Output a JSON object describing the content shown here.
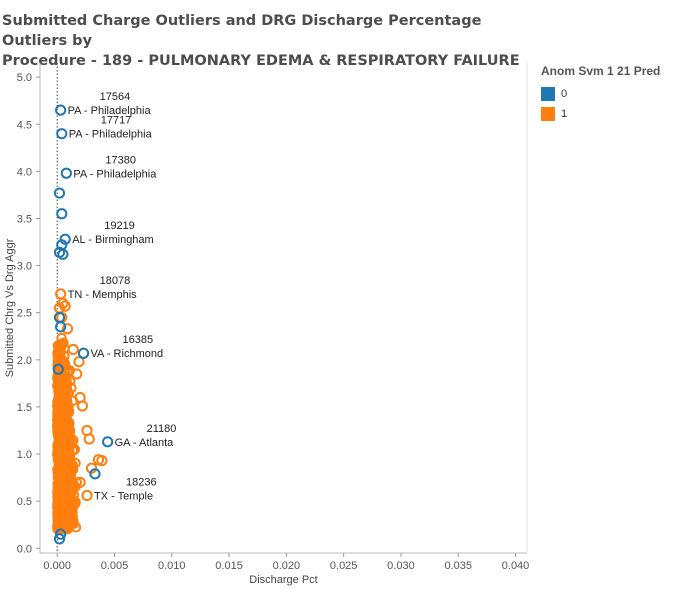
{
  "title_line1": "Submitted Charge Outliers and DRG Discharge Percentage Outliers by",
  "title_line2": "Procedure - 189 - PULMONARY EDEMA & RESPIRATORY FAILURE",
  "legend": {
    "title": "Anom Svm 1 21 Pred",
    "items": [
      {
        "label": "0",
        "color": "#1f77b4"
      },
      {
        "label": "1",
        "color": "#ff7f0e"
      }
    ]
  },
  "chart_data": {
    "type": "scatter",
    "title": "Submitted Charge Outliers and DRG Discharge Percentage Outliers by Procedure - 189 - PULMONARY EDEMA & RESPIRATORY FAILURE",
    "xlabel": "Discharge Pct",
    "ylabel": "Submitted Chrg Vs Drg Aggr",
    "xlim": [
      -0.0015,
      0.041
    ],
    "ylim": [
      -0.05,
      5.15
    ],
    "x_ticks": [
      "0.000",
      "0.005",
      "0.010",
      "0.015",
      "0.020",
      "0.025",
      "0.030",
      "0.035",
      "0.040"
    ],
    "x_tick_values": [
      0,
      0.005,
      0.01,
      0.015,
      0.02,
      0.025,
      0.03,
      0.035,
      0.04
    ],
    "y_ticks": [
      "0.0",
      "0.5",
      "1.0",
      "1.5",
      "2.0",
      "2.5",
      "3.0",
      "3.5",
      "4.0",
      "4.5",
      "5.0"
    ],
    "y_tick_values": [
      0,
      0.5,
      1,
      1.5,
      2,
      2.5,
      3,
      3.5,
      4,
      4.5,
      5
    ],
    "reference_line_x": 0,
    "grid": false,
    "legend_position": "right",
    "series": [
      {
        "name": "0",
        "color": "#1f77b4",
        "points": [
          {
            "x": 0.0003,
            "y": 4.65
          },
          {
            "x": 0.0004,
            "y": 4.4
          },
          {
            "x": 0.0008,
            "y": 3.98
          },
          {
            "x": 0.0002,
            "y": 3.77
          },
          {
            "x": 0.0004,
            "y": 3.55
          },
          {
            "x": 0.0007,
            "y": 3.28
          },
          {
            "x": 0.0004,
            "y": 3.22
          },
          {
            "x": 0.0002,
            "y": 3.14
          },
          {
            "x": 0.0005,
            "y": 3.12
          },
          {
            "x": 0.0002,
            "y": 2.45
          },
          {
            "x": 0.0003,
            "y": 2.35
          },
          {
            "x": 0.0023,
            "y": 2.07
          },
          {
            "x": 0.0001,
            "y": 1.9
          },
          {
            "x": 0.0044,
            "y": 1.13
          },
          {
            "x": 0.0033,
            "y": 0.79
          },
          {
            "x": 0.0003,
            "y": 0.15
          },
          {
            "x": 0.0002,
            "y": 0.1
          }
        ]
      },
      {
        "name": "1",
        "color": "#ff7f0e",
        "points": [
          {
            "x": 0.0003,
            "y": 2.7
          },
          {
            "x": 0.0005,
            "y": 2.6
          },
          {
            "x": 0.0002,
            "y": 2.55
          },
          {
            "x": 0.0007,
            "y": 2.57
          },
          {
            "x": 0.0004,
            "y": 2.45
          },
          {
            "x": 0.0009,
            "y": 2.33
          },
          {
            "x": 0.0014,
            "y": 2.11
          },
          {
            "x": 0.0019,
            "y": 1.98
          },
          {
            "x": 0.0017,
            "y": 1.85
          },
          {
            "x": 0.002,
            "y": 1.6
          },
          {
            "x": 0.0022,
            "y": 1.51
          },
          {
            "x": 0.0026,
            "y": 1.25
          },
          {
            "x": 0.0028,
            "y": 1.16
          },
          {
            "x": 0.0036,
            "y": 0.94
          },
          {
            "x": 0.0039,
            "y": 0.93
          },
          {
            "x": 0.003,
            "y": 0.85
          },
          {
            "x": 0.0026,
            "y": 0.56
          },
          {
            "x": 0.002,
            "y": 0.7
          },
          {
            "x": 0.0015,
            "y": 1.05
          },
          {
            "x": 0.0012,
            "y": 1.7
          },
          {
            "x": 0.001,
            "y": 1.45
          },
          {
            "x": 0.0008,
            "y": 0.4
          },
          {
            "x": 0.0006,
            "y": 0.3
          }
        ]
      }
    ],
    "annotations": [
      {
        "id": "17564",
        "place": "PA - Philadelphia",
        "x": 0.0003,
        "y": 4.65
      },
      {
        "id": "17717",
        "place": "PA - Philadelphia",
        "x": 0.0004,
        "y": 4.4
      },
      {
        "id": "17380",
        "place": "PA - Philadelphia",
        "x": 0.0008,
        "y": 3.98
      },
      {
        "id": "19219",
        "place": "AL - Birmingham",
        "x": 0.0007,
        "y": 3.28
      },
      {
        "id": "18078",
        "place": "TN - Memphis",
        "x": 0.0003,
        "y": 2.7
      },
      {
        "id": "16385",
        "place": "VA - Richmond",
        "x": 0.0023,
        "y": 2.07
      },
      {
        "id": "21180",
        "place": "GA - Atlanta",
        "x": 0.0044,
        "y": 1.13
      },
      {
        "id": "18236",
        "place": "TX - Temple",
        "x": 0.0026,
        "y": 0.56
      }
    ]
  }
}
